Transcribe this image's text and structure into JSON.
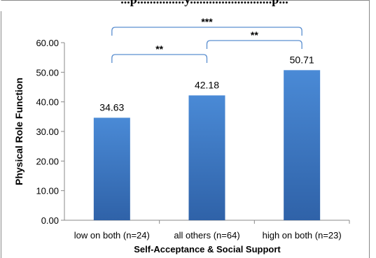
{
  "chart_data": {
    "type": "bar",
    "title": "...p...............y..........................p...",
    "categories": [
      "low on both (n=24)",
      "all others (n=64)",
      "high on both (n=23)"
    ],
    "values": [
      34.63,
      42.18,
      50.71
    ],
    "data_labels": [
      "34.63",
      "42.18",
      "50.71"
    ],
    "xlabel": "Self-Acceptance & Social Support",
    "ylabel": "Physical Role Function",
    "ylim": [
      0,
      60
    ],
    "yticks": [
      "0.00",
      "10.00",
      "20.00",
      "30.00",
      "40.00",
      "50.00",
      "60.00"
    ],
    "grid": false,
    "legend": "none",
    "bar_color": "#3f7fca",
    "bracket_color": "#5b8fd0",
    "significance": [
      {
        "from": 0,
        "to": 2,
        "label": "***"
      },
      {
        "from": 0,
        "to": 1,
        "label": "**"
      },
      {
        "from": 1,
        "to": 2,
        "label": "**"
      }
    ]
  }
}
